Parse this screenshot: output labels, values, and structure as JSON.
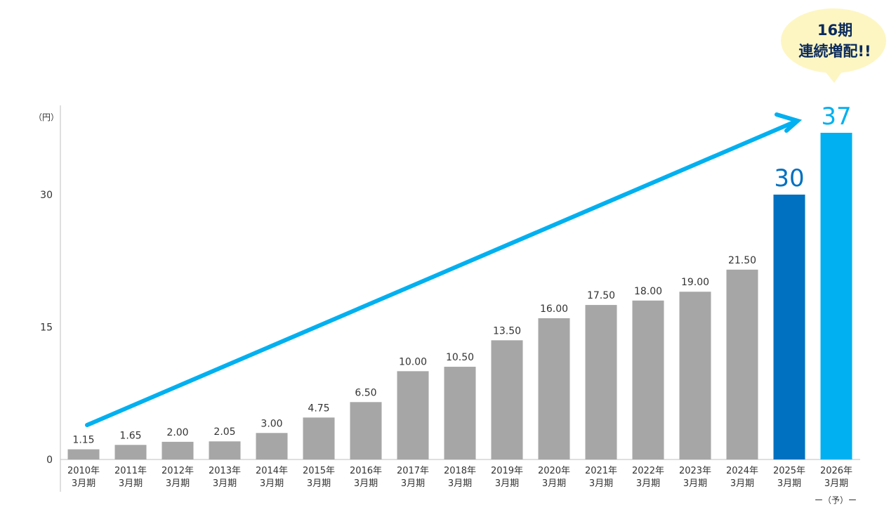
{
  "chart_data": {
    "type": "bar",
    "unit_label": "（円）",
    "y_ticks": [
      0,
      15,
      30
    ],
    "ylim": [
      0,
      37
    ],
    "categories": [
      [
        "2010年",
        "3月期"
      ],
      [
        "2011年",
        "3月期"
      ],
      [
        "2012年",
        "3月期"
      ],
      [
        "2013年",
        "3月期"
      ],
      [
        "2014年",
        "3月期"
      ],
      [
        "2015年",
        "3月期"
      ],
      [
        "2016年",
        "3月期"
      ],
      [
        "2017年",
        "3月期"
      ],
      [
        "2018年",
        "3月期"
      ],
      [
        "2019年",
        "3月期"
      ],
      [
        "2020年",
        "3月期"
      ],
      [
        "2021年",
        "3月期"
      ],
      [
        "2022年",
        "3月期"
      ],
      [
        "2023年",
        "3月期"
      ],
      [
        "2024年",
        "3月期"
      ],
      [
        "2025年",
        "3月期"
      ],
      [
        "2026年",
        "3月期"
      ]
    ],
    "values": [
      1.15,
      1.65,
      2.0,
      2.05,
      3.0,
      4.75,
      6.5,
      10.0,
      10.5,
      13.5,
      16.0,
      17.5,
      18.0,
      19.0,
      21.5,
      30,
      37
    ],
    "value_labels": [
      "1.15",
      "1.65",
      "2.00",
      "2.05",
      "3.00",
      "4.75",
      "6.50",
      "10.00",
      "10.50",
      "13.50",
      "16.00",
      "17.50",
      "18.00",
      "19.00",
      "21.50",
      "30",
      "37"
    ],
    "bar_colors": [
      "#a6a6a6",
      "#a6a6a6",
      "#a6a6a6",
      "#a6a6a6",
      "#a6a6a6",
      "#a6a6a6",
      "#a6a6a6",
      "#a6a6a6",
      "#a6a6a6",
      "#a6a6a6",
      "#a6a6a6",
      "#a6a6a6",
      "#a6a6a6",
      "#a6a6a6",
      "#a6a6a6",
      "#0070c0",
      "#00b0f0"
    ],
    "highlight_label_colors": {
      "30": "#0070c0",
      "37": "#00b0f0"
    },
    "forecast_note": "ー（予）ー",
    "annotation": {
      "line1": "16期",
      "line2": "連続増配!!",
      "bubble_color": "#fdf6c3"
    },
    "arrow_color": "#00b0f0",
    "grid": false
  }
}
